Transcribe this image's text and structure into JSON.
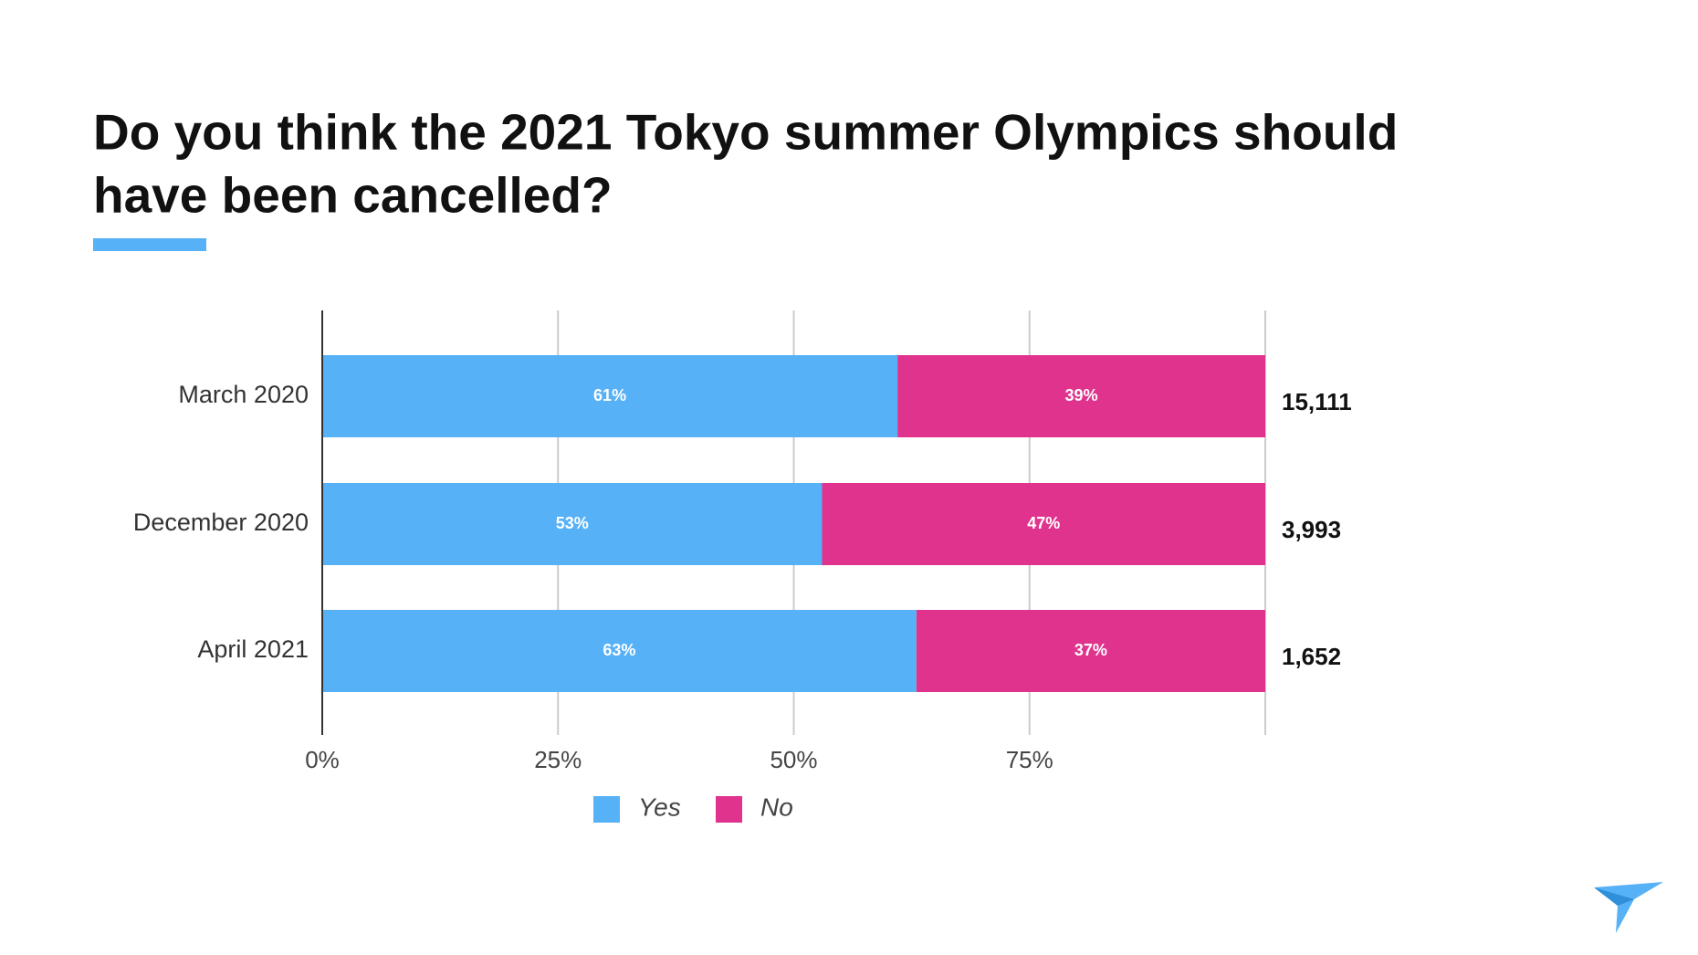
{
  "chart_data": {
    "type": "stacked_bar_horizontal",
    "title": [
      "Do you think the 2021 Tokyo summer Olympics should",
      "have been cancelled?"
    ],
    "categories": [
      "March 2020",
      "December 2020",
      "April 2021"
    ],
    "series": [
      {
        "name": "Yes",
        "color": "#56b1f7",
        "values": [
          61,
          53,
          63
        ],
        "value_labels": [
          "61%",
          "53%",
          "63%"
        ]
      },
      {
        "name": "No",
        "color": "#e0338e",
        "values": [
          39,
          47,
          37
        ],
        "value_labels": [
          "39%",
          "47%",
          "37%"
        ]
      }
    ],
    "respondents": [
      {
        "value": 15111,
        "label": "15,111"
      },
      {
        "value": 3993,
        "label": "3,993"
      },
      {
        "value": 1652,
        "label": "1,652"
      }
    ],
    "xlim": [
      0,
      100
    ],
    "xticks": [
      {
        "value": 0,
        "label": "0%"
      },
      {
        "value": 25,
        "label": "25%"
      },
      {
        "value": 50,
        "label": "50%"
      },
      {
        "value": 75,
        "label": "75%"
      }
    ],
    "grid": true,
    "legend": "bottom"
  }
}
